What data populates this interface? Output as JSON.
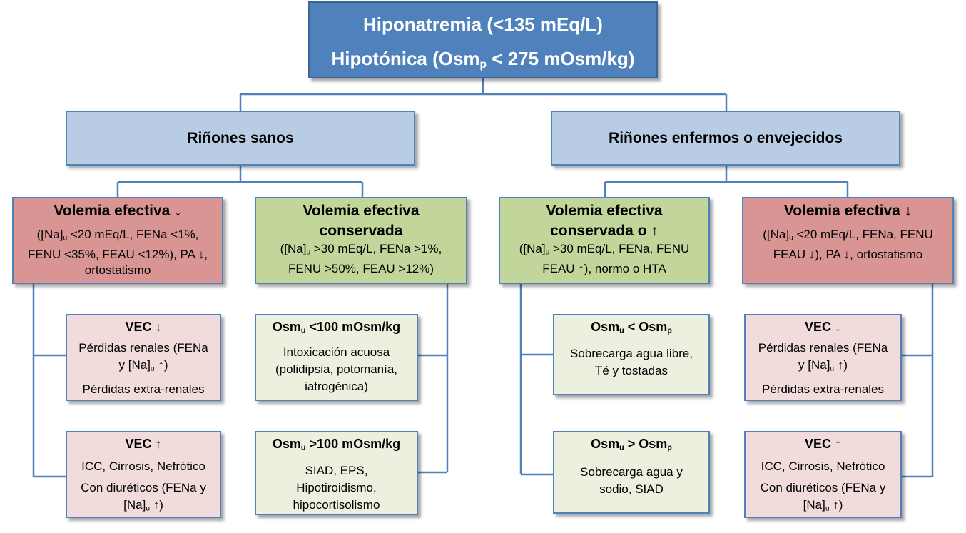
{
  "root": {
    "line1": "Hiponatremia (<135 mEq/L)",
    "line2_pre": "Hipotónica (Osm",
    "line2_sub": "p",
    "line2_post": " < 275 mOsm/kg)"
  },
  "left_branch": {
    "title": "Riñones sanos"
  },
  "right_branch": {
    "title": "Riñones enfermos o envejecidos"
  },
  "col1": {
    "header": "Volemia efectiva ↓",
    "detail_a": "([Na]",
    "detail_sub": "u",
    "detail_b": " <20 mEq/L, FENa <1%,",
    "detail_c": "FENU <35%, FEAU <12%), PA ↓,",
    "detail_d": "ortostatismo",
    "box1": {
      "title": "VEC ↓",
      "l1": "Pérdidas renales (FENa",
      "l2a": "y [Na]",
      "l2sub": "u",
      "l2b": " ↑)",
      "l3": "Pérdidas extra-renales"
    },
    "box2": {
      "title": "VEC ↑",
      "l1": "ICC, Cirrosis, Nefrótico",
      "l2": "Con diuréticos (FENa y",
      "l3a": "[Na]",
      "l3sub": "u",
      "l3b": " ↑)"
    }
  },
  "col2": {
    "header1": "Volemia efectiva",
    "header2": "conservada",
    "detail_a": "([Na]",
    "detail_sub": "u",
    "detail_b": " >30 mEq/L, FENa >1%,",
    "detail_c": "FENU >50%, FEAU >12%)",
    "box1": {
      "title_a": "Osm",
      "title_sub": "u",
      "title_b": " <100 mOsm/kg",
      "l1": "Intoxicación acuosa",
      "l2": "(polidipsia, potomanía,",
      "l3": "iatrogénica)"
    },
    "box2": {
      "title_a": "Osm",
      "title_sub": "u",
      "title_b": " >100 mOsm/kg",
      "l1": "SIAD, EPS,",
      "l2": "Hipotiroidismo,",
      "l3": "hipocortisolismo"
    }
  },
  "col3": {
    "header1": "Volemia efectiva",
    "header2": "conservada o ↑",
    "detail_a": "([Na]",
    "detail_sub": "u",
    "detail_b": " >30 mEq/L, FENa, FENU",
    "detail_c": "FEAU ↑), normo o HTA",
    "box1": {
      "title_a": "Osm",
      "title_sub1": "u",
      "title_b": " < Osm",
      "title_sub2": "p",
      "l1": "Sobrecarga agua libre,",
      "l2": "Té y tostadas"
    },
    "box2": {
      "title_a": "Osm",
      "title_sub1": "u",
      "title_b": " > Osm",
      "title_sub2": "p",
      "l1": "Sobrecarga agua y",
      "l2": "sodio, SIAD"
    }
  },
  "col4": {
    "header": "Volemia efectiva ↓",
    "detail_a": "([Na]",
    "detail_sub": "u",
    "detail_b": " <20 mEq/L, FENa, FENU",
    "detail_c": "FEAU ↓), PA ↓, ortostatismo",
    "box1": {
      "title": "VEC ↓",
      "l1": "Pérdidas renales (FENa",
      "l2a": "y [Na]",
      "l2sub": "u",
      "l2b": " ↑)",
      "l3": "Pérdidas extra-renales"
    },
    "box2": {
      "title": "VEC ↑",
      "l1": "ICC, Cirrosis, Nefrótico",
      "l2": "Con diuréticos (FENa y",
      "l3a": "[Na]",
      "l3sub": "u",
      "l3b": " ↑)"
    }
  },
  "colors": {
    "root": "#4f81bd",
    "branch": "#b8cce4",
    "red": "#d99594",
    "green": "#c2d69b",
    "pink": "#f2dcdb",
    "light_green": "#ebf1de",
    "connector": "#4f81bd"
  }
}
